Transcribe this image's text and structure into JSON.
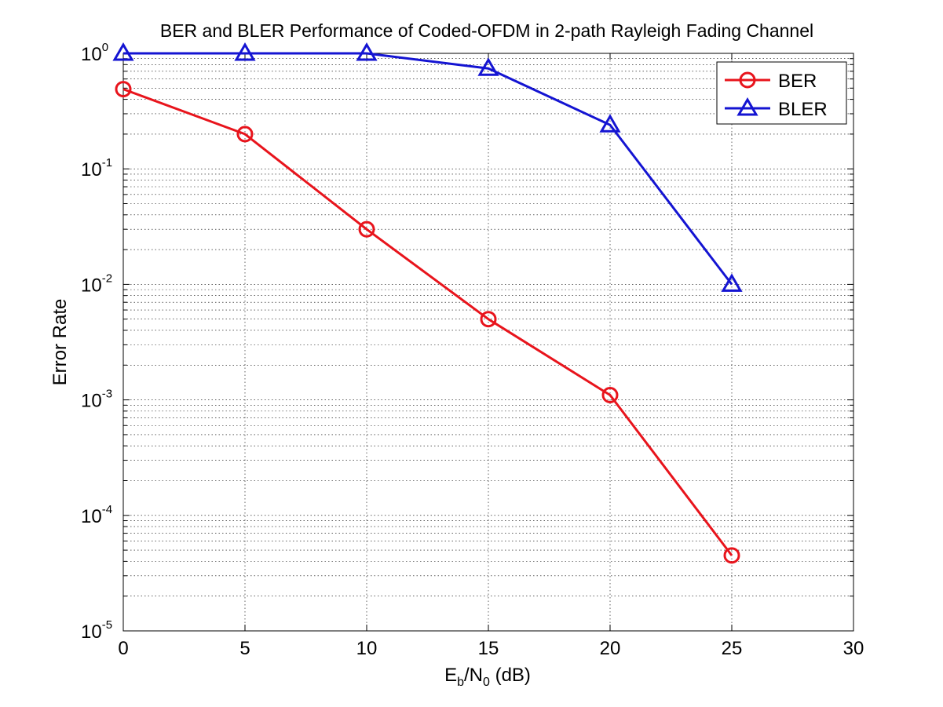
{
  "chart_data": {
    "type": "line",
    "title": "BER and BLER Performance of Coded-OFDM in 2-path Rayleigh Fading Channel",
    "xlabel": {
      "main": "E",
      "sub1": "b",
      "mid": "/N",
      "sub2": "0",
      "tail": " (dB)"
    },
    "ylabel": "Error Rate",
    "xlim": [
      0,
      30
    ],
    "ylim": [
      1e-05,
      1
    ],
    "yscale": "log",
    "grid": true,
    "legend_position": "top-right",
    "x_ticks": [
      "0",
      "5",
      "10",
      "15",
      "20",
      "25",
      "30"
    ],
    "y_ticks": [
      {
        "base": "10",
        "exp": "0"
      },
      {
        "base": "10",
        "exp": "-1"
      },
      {
        "base": "10",
        "exp": "-2"
      },
      {
        "base": "10",
        "exp": "-3"
      },
      {
        "base": "10",
        "exp": "-4"
      },
      {
        "base": "10",
        "exp": "-5"
      }
    ],
    "series": [
      {
        "name": "BER",
        "color": "#e8141c",
        "marker": "circle",
        "x": [
          0,
          5,
          10,
          15,
          20,
          25
        ],
        "y": [
          0.49,
          0.2,
          0.03,
          0.005,
          0.0011,
          4.5e-05
        ]
      },
      {
        "name": "BLER",
        "color": "#1414d2",
        "marker": "triangle",
        "x": [
          0,
          5,
          10,
          15,
          20,
          25
        ],
        "y": [
          1.0,
          1.0,
          1.0,
          0.74,
          0.24,
          0.01
        ]
      }
    ]
  }
}
